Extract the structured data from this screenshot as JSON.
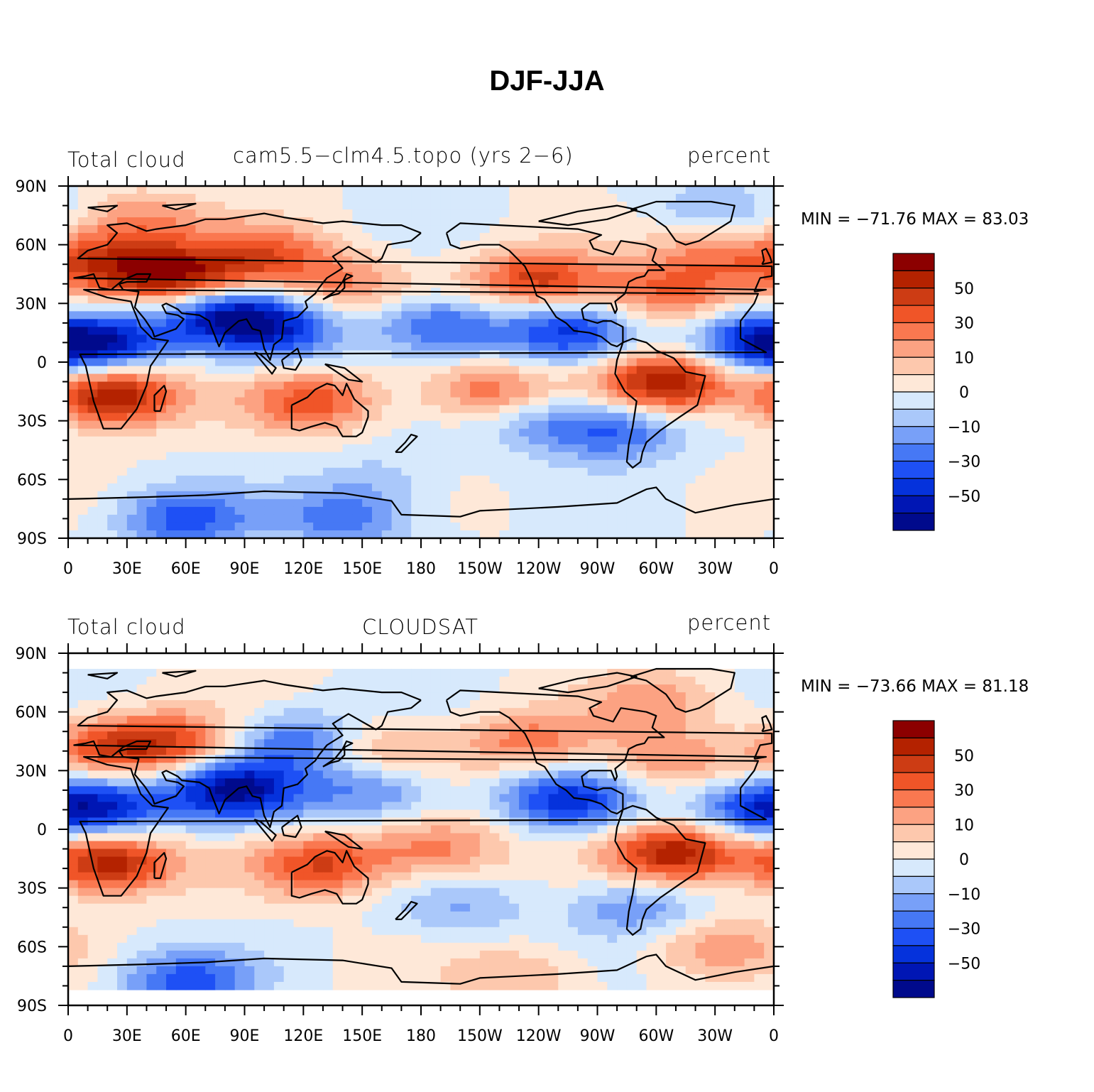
{
  "title": "DJF-JJA",
  "colors": {
    "scale": [
      "#000a8c",
      "#0016b4",
      "#0532dc",
      "#1e50f5",
      "#4678f5",
      "#78a0f8",
      "#aac8fa",
      "#d7e9fc",
      "#fee8d8",
      "#fdc8ad",
      "#fca282",
      "#fa7850",
      "#f05528",
      "#cd3c14",
      "#b42200",
      "#8c0000"
    ],
    "coast": "#000000"
  },
  "chart_data": [
    {
      "type": "heatmap",
      "left_label": "Total cloud",
      "center_label": "cam5.5−clm4.5.topo (yrs 2−6)",
      "right_label": "percent",
      "stats": "MIN = −71.76 MAX =   83.03",
      "x_tick_labels": [
        "0",
        "30E",
        "60E",
        "90E",
        "120E",
        "150E",
        "180",
        "150W",
        "120W",
        "90W",
        "60W",
        "30W",
        "0"
      ],
      "y_tick_labels": [
        "90N",
        "60N",
        "30N",
        "0",
        "30S",
        "60S",
        "90S"
      ],
      "xlim": [
        0,
        360
      ],
      "ylim": [
        -90,
        90
      ],
      "colorbar_labels": [
        "50",
        "30",
        "10",
        "0",
        "−10",
        "−30",
        "−50"
      ],
      "field_blobs": [
        {
          "lon": 60,
          "lat": 43,
          "value": 65
        },
        {
          "lon": 20,
          "lat": 50,
          "value": 50
        },
        {
          "lon": 100,
          "lat": 55,
          "value": 40
        },
        {
          "lon": 140,
          "lat": 40,
          "value": 30
        },
        {
          "lon": 35,
          "lat": 72,
          "value": 30
        },
        {
          "lon": 22,
          "lat": -17,
          "value": 75
        },
        {
          "lon": 125,
          "lat": -20,
          "value": 45
        },
        {
          "lon": 215,
          "lat": -15,
          "value": 40
        },
        {
          "lon": 240,
          "lat": 42,
          "value": 55
        },
        {
          "lon": 305,
          "lat": 35,
          "value": 40
        },
        {
          "lon": 305,
          "lat": -10,
          "value": 72
        },
        {
          "lon": 330,
          "lat": 55,
          "value": 30
        },
        {
          "lon": 20,
          "lat": 10,
          "value": -55
        },
        {
          "lon": 80,
          "lat": 25,
          "value": -65
        },
        {
          "lon": 110,
          "lat": 15,
          "value": -40
        },
        {
          "lon": 190,
          "lat": 18,
          "value": -45
        },
        {
          "lon": 255,
          "lat": 15,
          "value": -50
        },
        {
          "lon": 350,
          "lat": 10,
          "value": -55
        },
        {
          "lon": 280,
          "lat": -35,
          "value": -40
        },
        {
          "lon": 240,
          "lat": -30,
          "value": -25
        },
        {
          "lon": 160,
          "lat": -60,
          "value": -15
        },
        {
          "lon": 60,
          "lat": -80,
          "value": -45
        },
        {
          "lon": 140,
          "lat": -80,
          "value": -35
        },
        {
          "lon": 330,
          "lat": 78,
          "value": -20
        }
      ]
    },
    {
      "type": "heatmap",
      "left_label": "Total cloud",
      "center_label": "CLOUDSAT",
      "right_label": "percent",
      "stats": "MIN = −73.66 MAX =   81.18",
      "x_tick_labels": [
        "0",
        "30E",
        "60E",
        "90E",
        "120E",
        "150E",
        "180",
        "150W",
        "120W",
        "90W",
        "60W",
        "30W",
        "0"
      ],
      "y_tick_labels": [
        "90N",
        "60N",
        "30N",
        "0",
        "30S",
        "60S",
        "90S"
      ],
      "xlim": [
        0,
        360
      ],
      "ylim": [
        -90,
        90
      ],
      "data_lat_range": [
        -82,
        82
      ],
      "colorbar_labels": [
        "50",
        "30",
        "10",
        "0",
        "−10",
        "−30",
        "−50"
      ],
      "field_blobs": [
        {
          "lon": 25,
          "lat": 42,
          "value": 50
        },
        {
          "lon": 60,
          "lat": 45,
          "value": 35
        },
        {
          "lon": 20,
          "lat": -17,
          "value": 70
        },
        {
          "lon": 130,
          "lat": -18,
          "value": 50
        },
        {
          "lon": 190,
          "lat": -10,
          "value": 35
        },
        {
          "lon": 160,
          "lat": 40,
          "value": 25
        },
        {
          "lon": 235,
          "lat": 45,
          "value": 35
        },
        {
          "lon": 305,
          "lat": 35,
          "value": 30
        },
        {
          "lon": 310,
          "lat": -12,
          "value": 68
        },
        {
          "lon": 300,
          "lat": 65,
          "value": 25
        },
        {
          "lon": 330,
          "lat": -60,
          "value": 25
        },
        {
          "lon": 20,
          "lat": 12,
          "value": -50
        },
        {
          "lon": 85,
          "lat": 20,
          "value": -70
        },
        {
          "lon": 115,
          "lat": 45,
          "value": -40
        },
        {
          "lon": 155,
          "lat": 20,
          "value": -35
        },
        {
          "lon": 255,
          "lat": 15,
          "value": -55
        },
        {
          "lon": 350,
          "lat": 10,
          "value": -45
        },
        {
          "lon": 290,
          "lat": -40,
          "value": -30
        },
        {
          "lon": 200,
          "lat": -40,
          "value": -20
        },
        {
          "lon": 60,
          "lat": -78,
          "value": -45
        },
        {
          "lon": 230,
          "lat": -75,
          "value": 20
        }
      ]
    }
  ]
}
